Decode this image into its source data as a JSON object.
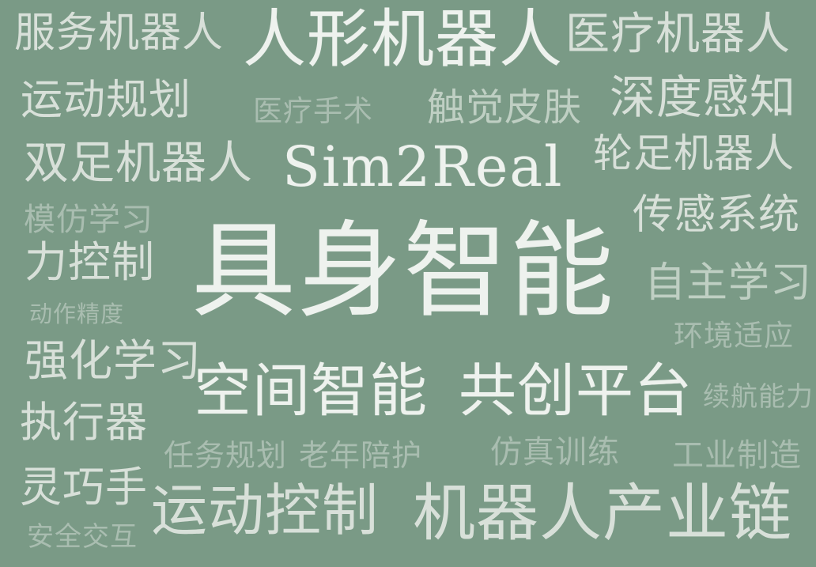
{
  "words": [
    {
      "id": "w1",
      "text": "服务机器人"
    },
    {
      "id": "w2",
      "text": "人形机器人"
    },
    {
      "id": "w3",
      "text": "医疗机器人"
    },
    {
      "id": "w4",
      "text": "运动规划"
    },
    {
      "id": "w5",
      "text": "医疗手术"
    },
    {
      "id": "w6",
      "text": "触觉皮肤"
    },
    {
      "id": "w7",
      "text": "深度感知"
    },
    {
      "id": "w8",
      "text": "双足机器人"
    },
    {
      "id": "w9",
      "text": "Sim2Real"
    },
    {
      "id": "w10",
      "text": "轮足机器人"
    },
    {
      "id": "w11",
      "text": "模仿学习"
    },
    {
      "id": "w12",
      "text": "传感系统"
    },
    {
      "id": "w13",
      "text": "力控制"
    },
    {
      "id": "w14",
      "text": "具身智能"
    },
    {
      "id": "w15",
      "text": "自主学习"
    },
    {
      "id": "w16",
      "text": "动作精度"
    },
    {
      "id": "w17",
      "text": "环境适应"
    },
    {
      "id": "w18",
      "text": "强化学习"
    },
    {
      "id": "w19",
      "text": "空间智能"
    },
    {
      "id": "w20",
      "text": "共创平台"
    },
    {
      "id": "w21",
      "text": "续航能力"
    },
    {
      "id": "w22",
      "text": "执行器"
    },
    {
      "id": "w23",
      "text": "任务规划"
    },
    {
      "id": "w24",
      "text": "老年陪护"
    },
    {
      "id": "w25",
      "text": "仿真训练"
    },
    {
      "id": "w26",
      "text": "工业制造"
    },
    {
      "id": "w27",
      "text": "灵巧手"
    },
    {
      "id": "w28",
      "text": "运动控制"
    },
    {
      "id": "w29",
      "text": "机器人产业链"
    },
    {
      "id": "w30",
      "text": "安全交互"
    }
  ]
}
